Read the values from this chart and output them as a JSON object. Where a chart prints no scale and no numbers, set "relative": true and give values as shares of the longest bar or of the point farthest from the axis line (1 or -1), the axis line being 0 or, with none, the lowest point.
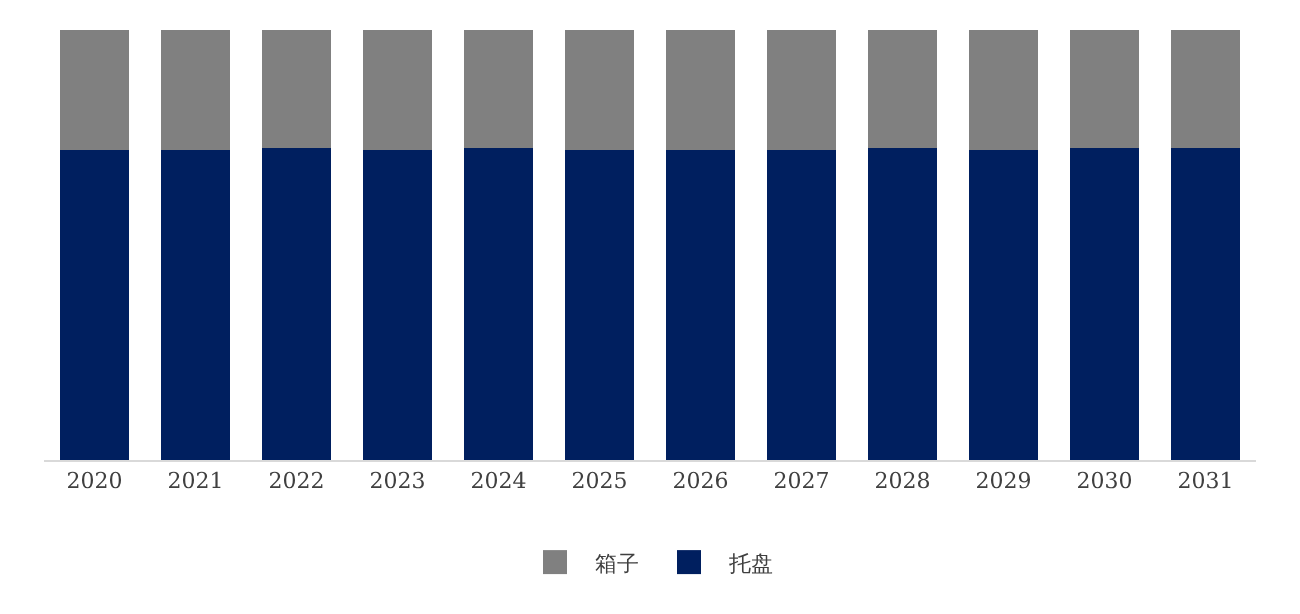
{
  "chart_data": {
    "type": "bar",
    "stacked": true,
    "relative": true,
    "legend": "bottom",
    "categories": [
      "2020",
      "2021",
      "2022",
      "2023",
      "2024",
      "2025",
      "2026",
      "2027",
      "2028",
      "2029",
      "2030",
      "2031"
    ],
    "series": [
      {
        "name": "托盘",
        "color": "#001f5f",
        "values": [
          0.72,
          0.72,
          0.725,
          0.72,
          0.725,
          0.72,
          0.72,
          0.72,
          0.725,
          0.72,
          0.725,
          0.725
        ]
      },
      {
        "name": "箱子",
        "color": "#808080",
        "values": [
          0.28,
          0.28,
          0.275,
          0.28,
          0.275,
          0.28,
          0.28,
          0.28,
          0.275,
          0.28,
          0.275,
          0.275
        ]
      }
    ]
  }
}
